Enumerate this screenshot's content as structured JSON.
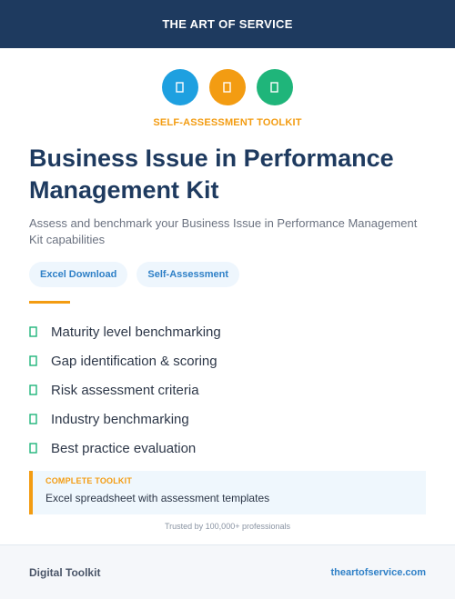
{
  "header": {
    "brand": "THE ART OF SERVICE"
  },
  "icons": [
    {
      "name": "document-icon",
      "color": "#1ea0e0"
    },
    {
      "name": "document-icon",
      "color": "#f39c12"
    },
    {
      "name": "document-icon",
      "color": "#1fb57a"
    }
  ],
  "kicker": "SELF-ASSESSMENT TOOLKIT",
  "title": "Business Issue in Performance Management Kit",
  "subtitle": "Assess and benchmark your Business Issue in Performance Management Kit capabilities",
  "tags": [
    "Excel Download",
    "Self-Assessment"
  ],
  "features": [
    "Maturity level benchmarking",
    "Gap identification & scoring",
    "Risk assessment criteria",
    "Industry benchmarking",
    "Best practice evaluation"
  ],
  "callout": {
    "label": "COMPLETE TOOLKIT",
    "text": "Excel spreadsheet with assessment templates"
  },
  "trusted": "Trusted by 100,000+ professionals",
  "footer": {
    "left": "Digital Toolkit",
    "right": "theartofservice.com"
  },
  "colors": {
    "navy": "#1e3a5f",
    "orange": "#f39c12",
    "green": "#1fb57a",
    "blue": "#2f80c7"
  }
}
